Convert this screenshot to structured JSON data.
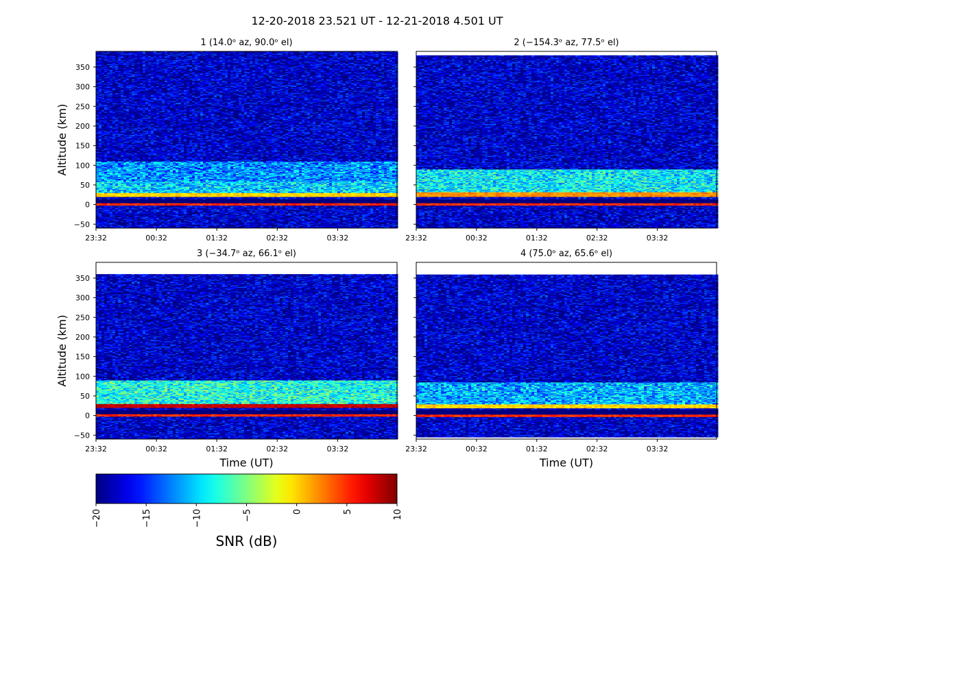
{
  "figure": {
    "suptitle": "12-20-2018 23.521 UT - 12-21-2018 4.501 UT"
  },
  "colorbar": {
    "label": "SNR (dB)",
    "ticks": [
      "−20",
      "−15",
      "−10",
      "−5",
      "0",
      "5",
      "10"
    ],
    "range": [
      -20,
      10
    ],
    "colormap": "jet"
  },
  "chart_data": [
    {
      "type": "heatmap",
      "panel": "1",
      "title": "1 (14.0ᵒ az,  90.0ᵒ el)",
      "xlabel": "",
      "ylabel": "Altitude (km)",
      "xlim": [
        "23:32",
        "04:31"
      ],
      "ylim": [
        -60,
        390
      ],
      "data_ylim": [
        -60,
        390
      ],
      "xticks": [
        "23:32",
        "00:32",
        "01:32",
        "02:32",
        "03:32"
      ],
      "yticks": [
        "−50",
        "0",
        "50",
        "100",
        "150",
        "200",
        "250",
        "300",
        "350"
      ],
      "profile": {
        "noise_snr": -18,
        "features": [
          {
            "alt_min": -3,
            "alt_max": 3,
            "snr": 5
          },
          {
            "alt_min": 3,
            "alt_max": 14,
            "snr": -21
          },
          {
            "alt_min": 20,
            "alt_max": 30,
            "snr": 0
          },
          {
            "alt_min": 30,
            "alt_max": 60,
            "snr": -10
          },
          {
            "alt_min": 60,
            "alt_max": 110,
            "snr": -12
          }
        ]
      }
    },
    {
      "type": "heatmap",
      "panel": "2",
      "title": "2 (−154.3ᵒ az,  77.5ᵒ el)",
      "xlabel": "",
      "ylabel": "",
      "xlim": [
        "23:32",
        "04:31"
      ],
      "ylim": [
        -60,
        390
      ],
      "data_ylim": [
        -60,
        380
      ],
      "xticks": [
        "23:32",
        "00:32",
        "01:32",
        "02:32",
        "03:32"
      ],
      "yticks": [],
      "profile": {
        "noise_snr": -18,
        "features": [
          {
            "alt_min": -3,
            "alt_max": 3,
            "snr": 5
          },
          {
            "alt_min": 3,
            "alt_max": 14,
            "snr": -21
          },
          {
            "alt_min": 20,
            "alt_max": 32,
            "snr": 2
          },
          {
            "alt_min": 32,
            "alt_max": 90,
            "snr": -9
          }
        ]
      }
    },
    {
      "type": "heatmap",
      "panel": "3",
      "title": "3 (−34.7ᵒ az,  66.1ᵒ el)",
      "xlabel": "Time (UT)",
      "ylabel": "Altitude (km)",
      "xlim": [
        "23:32",
        "04:31"
      ],
      "ylim": [
        -60,
        390
      ],
      "data_ylim": [
        -60,
        360
      ],
      "xticks": [
        "23:32",
        "00:32",
        "01:32",
        "02:32",
        "03:32"
      ],
      "yticks": [
        "−50",
        "0",
        "50",
        "100",
        "150",
        "200",
        "250",
        "300",
        "350"
      ],
      "profile": {
        "noise_snr": -18,
        "features": [
          {
            "alt_min": -3,
            "alt_max": 3,
            "snr": 5
          },
          {
            "alt_min": 3,
            "alt_max": 14,
            "snr": -21
          },
          {
            "alt_min": 20,
            "alt_max": 30,
            "snr": 8
          },
          {
            "alt_min": 30,
            "alt_max": 90,
            "snr": -8
          }
        ]
      }
    },
    {
      "type": "heatmap",
      "panel": "4",
      "title": "4 (75.0ᵒ az,  65.6ᵒ el)",
      "xlabel": "Time (UT)",
      "ylabel": "",
      "xlim": [
        "23:32",
        "04:31"
      ],
      "ylim": [
        -60,
        390
      ],
      "data_ylim": [
        -55,
        358
      ],
      "xticks": [
        "23:32",
        "00:32",
        "01:32",
        "02:32",
        "03:32"
      ],
      "yticks": [],
      "profile": {
        "noise_snr": -18,
        "features": [
          {
            "alt_min": -3,
            "alt_max": 3,
            "snr": 5
          },
          {
            "alt_min": 3,
            "alt_max": 14,
            "snr": -21
          },
          {
            "alt_min": 18,
            "alt_max": 28,
            "snr": 0
          },
          {
            "alt_min": 28,
            "alt_max": 85,
            "snr": -11
          }
        ]
      }
    }
  ]
}
